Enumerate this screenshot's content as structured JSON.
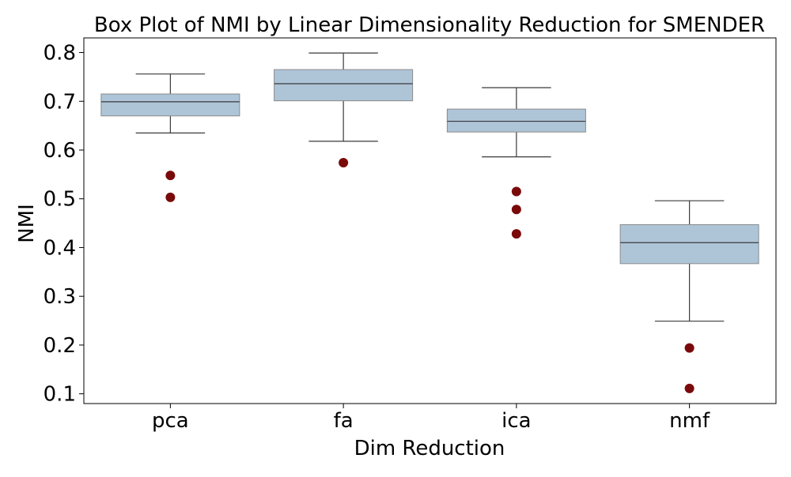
{
  "chart_data": {
    "type": "boxplot",
    "title": "Box Plot of NMI by Linear Dimensionality Reduction for SMENDER",
    "xlabel": "Dim Reduction",
    "ylabel": "NMI",
    "ylim": [
      0.08,
      0.83
    ],
    "yticks": [
      0.1,
      0.2,
      0.3,
      0.4,
      0.5,
      0.6,
      0.7,
      0.8
    ],
    "ytick_labels": [
      "0.1",
      "0.2",
      "0.3",
      "0.4",
      "0.5",
      "0.6",
      "0.7",
      "0.8"
    ],
    "grid": false,
    "box_color": "#aec5d8",
    "outlier_color": "#7a0a0a",
    "categories": [
      "pca",
      "fa",
      "ica",
      "nmf"
    ],
    "boxes": [
      {
        "category": "pca",
        "whisker_low": 0.635,
        "q1": 0.67,
        "median": 0.699,
        "q3": 0.715,
        "whisker_high": 0.756,
        "outliers": [
          0.548,
          0.503
        ]
      },
      {
        "category": "fa",
        "whisker_low": 0.618,
        "q1": 0.701,
        "median": 0.736,
        "q3": 0.765,
        "whisker_high": 0.799,
        "outliers": [
          0.574
        ]
      },
      {
        "category": "ica",
        "whisker_low": 0.586,
        "q1": 0.637,
        "median": 0.659,
        "q3": 0.684,
        "whisker_high": 0.728,
        "outliers": [
          0.515,
          0.478,
          0.428
        ]
      },
      {
        "category": "nmf",
        "whisker_low": 0.249,
        "q1": 0.367,
        "median": 0.41,
        "q3": 0.447,
        "whisker_high": 0.496,
        "outliers": [
          0.194,
          0.111
        ]
      }
    ]
  }
}
